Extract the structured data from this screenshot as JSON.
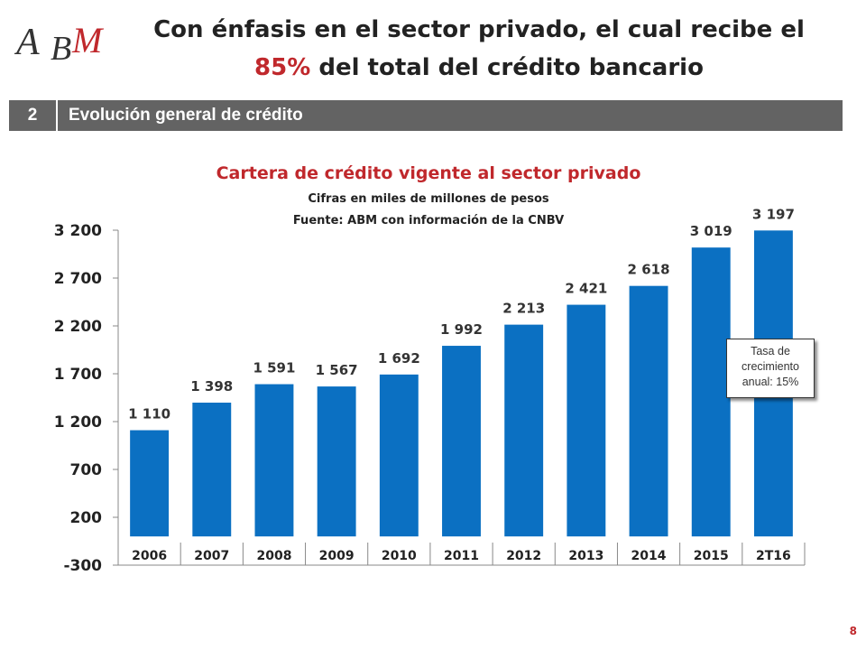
{
  "logo": {
    "text": "ABM",
    "accent_color": "#c0282c"
  },
  "headline": {
    "line1": "Con énfasis en el sector privado, el cual recibe el",
    "accent": "85%",
    "line2_rest": " del total del crédito bancario"
  },
  "section": {
    "number": "2",
    "title": "Evolución general de crédito"
  },
  "chart_data": {
    "type": "bar",
    "title": "Cartera de crédito vigente al sector privado",
    "subtitle_lines": [
      "Cifras en miles de millones de pesos",
      "Fuente: ABM con información de la CNBV"
    ],
    "categories": [
      "2006",
      "2007",
      "2008",
      "2009",
      "2010",
      "2011",
      "2012",
      "2013",
      "2014",
      "2015",
      "2T16"
    ],
    "values": [
      1110,
      1398,
      1591,
      1567,
      1692,
      1992,
      2213,
      2421,
      2618,
      3019,
      3197
    ],
    "value_labels": [
      "1 110",
      "1 398",
      "1 591",
      "1 567",
      "1 692",
      "1 992",
      "2 213",
      "2 421",
      "2 618",
      "3 019",
      "3 197"
    ],
    "yticks": [
      -300,
      200,
      700,
      1200,
      1700,
      2200,
      2700,
      3200
    ],
    "ytick_labels": [
      "-300",
      "200",
      "700",
      "1 200",
      "1 700",
      "2 200",
      "2 700",
      "3 200"
    ],
    "ylim": [
      -300,
      3200
    ],
    "grid": false,
    "bar_color": "#0b70c2",
    "xlabel": "",
    "ylabel": ""
  },
  "note": {
    "lines": [
      "Tasa de",
      "crecimiento",
      "anual: 15%"
    ]
  },
  "page_number": "8"
}
